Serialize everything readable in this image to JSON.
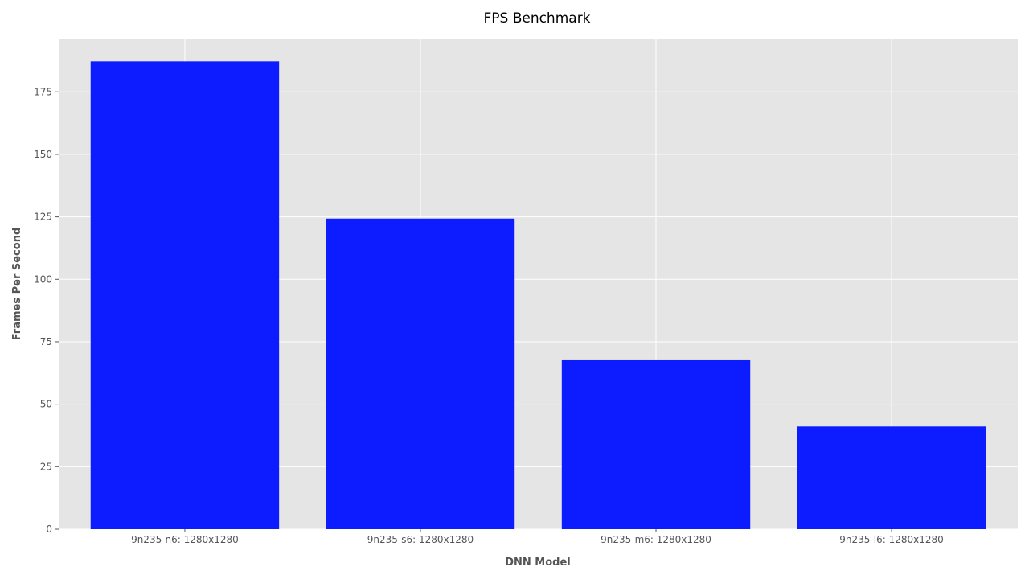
{
  "chart_data": {
    "type": "bar",
    "title": "FPS Benchmark",
    "xlabel": "DNN Model",
    "ylabel": "Frames Per Second",
    "categories": [
      "9n235-n6: 1280x1280",
      "9n235-s6: 1280x1280",
      "9n235-m6: 1280x1280",
      "9n235-l6: 1280x1280"
    ],
    "values": [
      187.2,
      124.3,
      67.6,
      41.1
    ],
    "ylim": [
      0,
      196
    ],
    "yticks": [
      0,
      25,
      50,
      75,
      100,
      125,
      150,
      175
    ],
    "grid": true,
    "bar_color": "#0c1cff",
    "plot_background": "#e5e5e5",
    "grid_color": "#ffffff"
  }
}
